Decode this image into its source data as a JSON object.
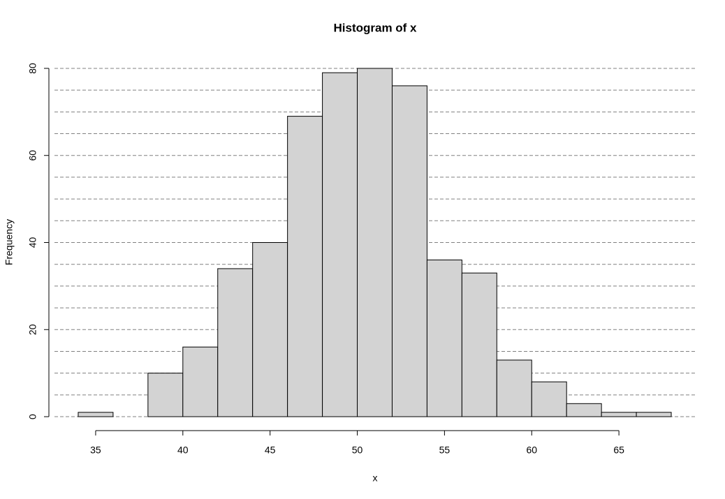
{
  "chart_data": {
    "type": "histogram",
    "title": "Histogram of x",
    "x_label": "x",
    "y_label": "Frequency",
    "bins": [
      34,
      36,
      38,
      40,
      42,
      44,
      46,
      48,
      50,
      52,
      54,
      56,
      58,
      60,
      62,
      64,
      66,
      68
    ],
    "values": [
      1,
      0,
      10,
      16,
      34,
      40,
      69,
      79,
      80,
      76,
      36,
      33,
      13,
      8,
      3,
      1,
      1
    ],
    "color": "#d3d3d3",
    "xlim": [
      32.64,
      69.36
    ],
    "ylim": [
      -3.2,
      83.2
    ],
    "xticks": [
      35,
      40,
      45,
      50,
      55,
      60,
      65
    ],
    "yticks": [
      0,
      20,
      40,
      60,
      80
    ],
    "ygrid": [
      0,
      5,
      10,
      15,
      20,
      25,
      30,
      35,
      40,
      45,
      50,
      55,
      60,
      65,
      70,
      75,
      80
    ]
  }
}
